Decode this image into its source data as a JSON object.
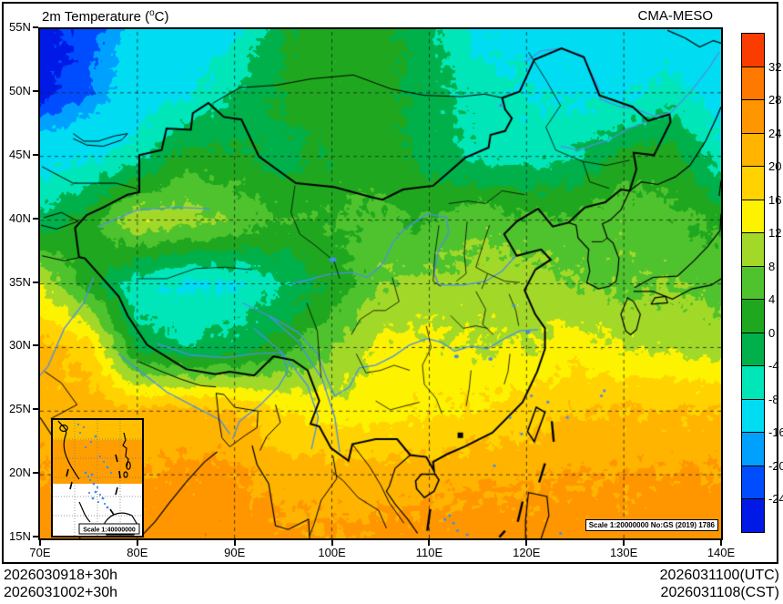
{
  "header": {
    "title_prefix": "2m Temperature (",
    "title_deg": "o",
    "title_suffix": "C)",
    "model": "CMA-MESO"
  },
  "axes": {
    "x_labels": [
      "70E",
      "80E",
      "90E",
      "100E",
      "110E",
      "120E",
      "130E",
      "140E"
    ],
    "y_labels": [
      "55N",
      "50N",
      "45N",
      "40N",
      "35N",
      "30N",
      "25N",
      "20N",
      "15N"
    ],
    "lon_min": 70,
    "lon_max": 140,
    "lat_min": 15,
    "lat_max": 55
  },
  "colorbar": {
    "labels_top_to_bottom": [
      "32",
      "28",
      "24",
      "20",
      "16",
      "12",
      "8",
      "4",
      "0",
      "-4",
      "-8",
      "-16",
      "-20",
      "-24"
    ]
  },
  "annotations": {
    "scale_note": "Scale 1:20000000 No:GS (2019) 1786",
    "inset_scale_note": "Scale 1:40000000"
  },
  "footer": {
    "init_line1": "2026030918+30h",
    "init_line2": "2026031002+30h",
    "valid_utc": "2026031100(UTC)",
    "valid_cst": "2026031108(CST)"
  },
  "chart_data": {
    "type": "heatmap",
    "title": "2m Temperature (°C)",
    "model": "CMA-MESO",
    "units": "°C",
    "lons": [
      70,
      75,
      80,
      85,
      90,
      95,
      100,
      105,
      110,
      115,
      120,
      125,
      130,
      135,
      140
    ],
    "lats": [
      55,
      50,
      45,
      40,
      35,
      30,
      25,
      20,
      15
    ],
    "values_by_lat_row": [
      [
        -26,
        -23,
        -13,
        -11,
        -9,
        0,
        2,
        2,
        -3,
        -9,
        -10,
        -10,
        -11,
        -12,
        -15
      ],
      [
        -26,
        -20,
        -11,
        -9,
        -4,
        1,
        3,
        2,
        -2,
        -6,
        -8,
        -9,
        -9,
        -6,
        -11
      ],
      [
        -10,
        -9,
        -6,
        2,
        1,
        -2,
        1,
        2,
        -2,
        -5,
        -6,
        -4,
        1,
        2,
        -7
      ],
      [
        -3,
        2,
        12,
        10,
        7,
        4,
        4,
        5,
        4,
        7,
        5,
        5,
        7,
        5,
        3
      ],
      [
        12,
        2,
        -7,
        -9,
        -8,
        -4,
        1,
        8,
        9,
        10,
        10,
        8,
        7,
        8,
        6
      ],
      [
        21,
        18,
        -1,
        -4,
        -2,
        2,
        8,
        13,
        13,
        12,
        12,
        14,
        12,
        11,
        10
      ],
      [
        22,
        22,
        21,
        22,
        20,
        16,
        14,
        14,
        16,
        16,
        18,
        20,
        20,
        20,
        20
      ],
      [
        24,
        24,
        24,
        25,
        25,
        22,
        22,
        22,
        22,
        23,
        23,
        24,
        24,
        24,
        24
      ],
      [
        26,
        26,
        26,
        27,
        27,
        25,
        24,
        25,
        26,
        26,
        26,
        26,
        26,
        27,
        27
      ]
    ],
    "bin_thresholds": [
      -24,
      -20,
      -16,
      -8,
      -4,
      0,
      4,
      8,
      12,
      16,
      20,
      24,
      28,
      32
    ],
    "bin_colors_cold_to_hot": [
      "#0019e6",
      "#004cff",
      "#00a0ff",
      "#00ddf2",
      "#00e6b8",
      "#00b04a",
      "#1fa81f",
      "#4fc32d",
      "#a2d928",
      "#fdf200",
      "#ffd200",
      "#ffb400",
      "#ff9600",
      "#ff7800",
      "#fa3c00"
    ],
    "grid": "dashed 5-deg lat / 10-deg lon",
    "legend_position": "right"
  }
}
